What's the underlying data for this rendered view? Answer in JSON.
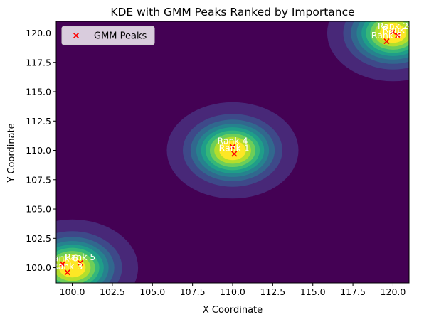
{
  "chart_data": {
    "type": "scatter",
    "title": "KDE with GMM Peaks Ranked by Importance",
    "xlabel": "X Coordinate",
    "ylabel": "Y Coordinate",
    "xlim": [
      99.0,
      121.0
    ],
    "ylim": [
      98.7,
      121.0
    ],
    "xticks": [
      "100.0",
      "102.5",
      "105.0",
      "107.5",
      "110.0",
      "112.5",
      "115.0",
      "117.5",
      "120.0"
    ],
    "xtick_values": [
      100.0,
      102.5,
      105.0,
      107.5,
      110.0,
      112.5,
      115.0,
      117.5,
      120.0
    ],
    "yticks": [
      "100.0",
      "102.5",
      "105.0",
      "107.5",
      "110.0",
      "112.5",
      "115.0",
      "117.5",
      "120.0"
    ],
    "ytick_values": [
      100.0,
      102.5,
      105.0,
      107.5,
      110.0,
      112.5,
      115.0,
      117.5,
      120.0
    ],
    "background": "KDE density contour map (viridis), three density clusters",
    "density_centers": [
      {
        "x": 110.0,
        "y": 110.0,
        "spread": 1.0
      },
      {
        "x": 100.0,
        "y": 100.0,
        "spread": 1.0
      },
      {
        "x": 120.0,
        "y": 120.0,
        "spread": 1.0
      }
    ],
    "series": [
      {
        "name": "GMM Peaks",
        "marker": "x",
        "color": "#ff0000",
        "points": [
          {
            "x": 110.1,
            "y": 109.7,
            "label": "Rank 1"
          },
          {
            "x": 120.0,
            "y": 120.1,
            "label": "Rank 2"
          },
          {
            "x": 99.7,
            "y": 99.6,
            "label": "Rank 3"
          },
          {
            "x": 110.0,
            "y": 110.3,
            "label": "Rank 4"
          },
          {
            "x": 100.5,
            "y": 100.4,
            "label": "Rank 5"
          },
          {
            "x": 99.4,
            "y": 100.3,
            "label": "Rank 6"
          },
          {
            "x": 120.3,
            "y": 119.8,
            "label": "Rank 7"
          },
          {
            "x": 119.6,
            "y": 119.3,
            "label": "Rank 8"
          }
        ]
      }
    ],
    "legend": {
      "position": "top-left",
      "entries": [
        "GMM Peaks"
      ]
    },
    "grid": false,
    "colors": {
      "colormap": [
        "#440154",
        "#482878",
        "#3e4989",
        "#31688e",
        "#26828e",
        "#1f9e89",
        "#35b779",
        "#6ece58",
        "#b5de2b",
        "#fde725"
      ],
      "marker": "#ff0000",
      "peak_label": "#ffffff"
    }
  }
}
